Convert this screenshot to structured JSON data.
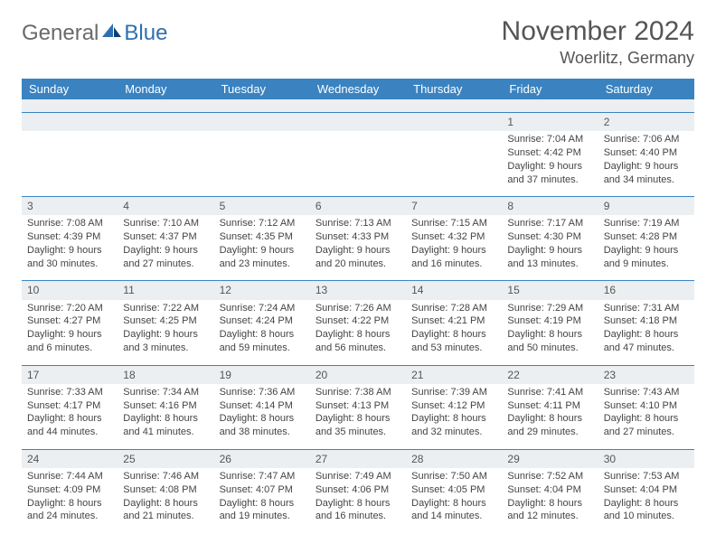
{
  "logo": {
    "general": "General",
    "blue": "Blue"
  },
  "title": {
    "month": "November 2024",
    "location": "Woerlitz, Germany"
  },
  "style": {
    "header_bg": "#3b83c0",
    "header_fg": "#ffffff",
    "daynum_bg": "#eceff1",
    "row_border": "#3b83c0",
    "logo_gray": "#6a6a6a",
    "logo_blue": "#2f6fb0",
    "text_color": "#444444",
    "title_color": "#555555",
    "font_family": "Arial",
    "title_fontsize": 30,
    "location_fontsize": 18,
    "header_fontsize": 13,
    "cell_fontsize": 11
  },
  "weekdays": [
    "Sunday",
    "Monday",
    "Tuesday",
    "Wednesday",
    "Thursday",
    "Friday",
    "Saturday"
  ],
  "weeks": [
    [
      null,
      null,
      null,
      null,
      null,
      {
        "day": "1",
        "sunrise": "Sunrise: 7:04 AM",
        "sunset": "Sunset: 4:42 PM",
        "daylight1": "Daylight: 9 hours",
        "daylight2": "and 37 minutes."
      },
      {
        "day": "2",
        "sunrise": "Sunrise: 7:06 AM",
        "sunset": "Sunset: 4:40 PM",
        "daylight1": "Daylight: 9 hours",
        "daylight2": "and 34 minutes."
      }
    ],
    [
      {
        "day": "3",
        "sunrise": "Sunrise: 7:08 AM",
        "sunset": "Sunset: 4:39 PM",
        "daylight1": "Daylight: 9 hours",
        "daylight2": "and 30 minutes."
      },
      {
        "day": "4",
        "sunrise": "Sunrise: 7:10 AM",
        "sunset": "Sunset: 4:37 PM",
        "daylight1": "Daylight: 9 hours",
        "daylight2": "and 27 minutes."
      },
      {
        "day": "5",
        "sunrise": "Sunrise: 7:12 AM",
        "sunset": "Sunset: 4:35 PM",
        "daylight1": "Daylight: 9 hours",
        "daylight2": "and 23 minutes."
      },
      {
        "day": "6",
        "sunrise": "Sunrise: 7:13 AM",
        "sunset": "Sunset: 4:33 PM",
        "daylight1": "Daylight: 9 hours",
        "daylight2": "and 20 minutes."
      },
      {
        "day": "7",
        "sunrise": "Sunrise: 7:15 AM",
        "sunset": "Sunset: 4:32 PM",
        "daylight1": "Daylight: 9 hours",
        "daylight2": "and 16 minutes."
      },
      {
        "day": "8",
        "sunrise": "Sunrise: 7:17 AM",
        "sunset": "Sunset: 4:30 PM",
        "daylight1": "Daylight: 9 hours",
        "daylight2": "and 13 minutes."
      },
      {
        "day": "9",
        "sunrise": "Sunrise: 7:19 AM",
        "sunset": "Sunset: 4:28 PM",
        "daylight1": "Daylight: 9 hours",
        "daylight2": "and 9 minutes."
      }
    ],
    [
      {
        "day": "10",
        "sunrise": "Sunrise: 7:20 AM",
        "sunset": "Sunset: 4:27 PM",
        "daylight1": "Daylight: 9 hours",
        "daylight2": "and 6 minutes."
      },
      {
        "day": "11",
        "sunrise": "Sunrise: 7:22 AM",
        "sunset": "Sunset: 4:25 PM",
        "daylight1": "Daylight: 9 hours",
        "daylight2": "and 3 minutes."
      },
      {
        "day": "12",
        "sunrise": "Sunrise: 7:24 AM",
        "sunset": "Sunset: 4:24 PM",
        "daylight1": "Daylight: 8 hours",
        "daylight2": "and 59 minutes."
      },
      {
        "day": "13",
        "sunrise": "Sunrise: 7:26 AM",
        "sunset": "Sunset: 4:22 PM",
        "daylight1": "Daylight: 8 hours",
        "daylight2": "and 56 minutes."
      },
      {
        "day": "14",
        "sunrise": "Sunrise: 7:28 AM",
        "sunset": "Sunset: 4:21 PM",
        "daylight1": "Daylight: 8 hours",
        "daylight2": "and 53 minutes."
      },
      {
        "day": "15",
        "sunrise": "Sunrise: 7:29 AM",
        "sunset": "Sunset: 4:19 PM",
        "daylight1": "Daylight: 8 hours",
        "daylight2": "and 50 minutes."
      },
      {
        "day": "16",
        "sunrise": "Sunrise: 7:31 AM",
        "sunset": "Sunset: 4:18 PM",
        "daylight1": "Daylight: 8 hours",
        "daylight2": "and 47 minutes."
      }
    ],
    [
      {
        "day": "17",
        "sunrise": "Sunrise: 7:33 AM",
        "sunset": "Sunset: 4:17 PM",
        "daylight1": "Daylight: 8 hours",
        "daylight2": "and 44 minutes."
      },
      {
        "day": "18",
        "sunrise": "Sunrise: 7:34 AM",
        "sunset": "Sunset: 4:16 PM",
        "daylight1": "Daylight: 8 hours",
        "daylight2": "and 41 minutes."
      },
      {
        "day": "19",
        "sunrise": "Sunrise: 7:36 AM",
        "sunset": "Sunset: 4:14 PM",
        "daylight1": "Daylight: 8 hours",
        "daylight2": "and 38 minutes."
      },
      {
        "day": "20",
        "sunrise": "Sunrise: 7:38 AM",
        "sunset": "Sunset: 4:13 PM",
        "daylight1": "Daylight: 8 hours",
        "daylight2": "and 35 minutes."
      },
      {
        "day": "21",
        "sunrise": "Sunrise: 7:39 AM",
        "sunset": "Sunset: 4:12 PM",
        "daylight1": "Daylight: 8 hours",
        "daylight2": "and 32 minutes."
      },
      {
        "day": "22",
        "sunrise": "Sunrise: 7:41 AM",
        "sunset": "Sunset: 4:11 PM",
        "daylight1": "Daylight: 8 hours",
        "daylight2": "and 29 minutes."
      },
      {
        "day": "23",
        "sunrise": "Sunrise: 7:43 AM",
        "sunset": "Sunset: 4:10 PM",
        "daylight1": "Daylight: 8 hours",
        "daylight2": "and 27 minutes."
      }
    ],
    [
      {
        "day": "24",
        "sunrise": "Sunrise: 7:44 AM",
        "sunset": "Sunset: 4:09 PM",
        "daylight1": "Daylight: 8 hours",
        "daylight2": "and 24 minutes."
      },
      {
        "day": "25",
        "sunrise": "Sunrise: 7:46 AM",
        "sunset": "Sunset: 4:08 PM",
        "daylight1": "Daylight: 8 hours",
        "daylight2": "and 21 minutes."
      },
      {
        "day": "26",
        "sunrise": "Sunrise: 7:47 AM",
        "sunset": "Sunset: 4:07 PM",
        "daylight1": "Daylight: 8 hours",
        "daylight2": "and 19 minutes."
      },
      {
        "day": "27",
        "sunrise": "Sunrise: 7:49 AM",
        "sunset": "Sunset: 4:06 PM",
        "daylight1": "Daylight: 8 hours",
        "daylight2": "and 16 minutes."
      },
      {
        "day": "28",
        "sunrise": "Sunrise: 7:50 AM",
        "sunset": "Sunset: 4:05 PM",
        "daylight1": "Daylight: 8 hours",
        "daylight2": "and 14 minutes."
      },
      {
        "day": "29",
        "sunrise": "Sunrise: 7:52 AM",
        "sunset": "Sunset: 4:04 PM",
        "daylight1": "Daylight: 8 hours",
        "daylight2": "and 12 minutes."
      },
      {
        "day": "30",
        "sunrise": "Sunrise: 7:53 AM",
        "sunset": "Sunset: 4:04 PM",
        "daylight1": "Daylight: 8 hours",
        "daylight2": "and 10 minutes."
      }
    ]
  ]
}
